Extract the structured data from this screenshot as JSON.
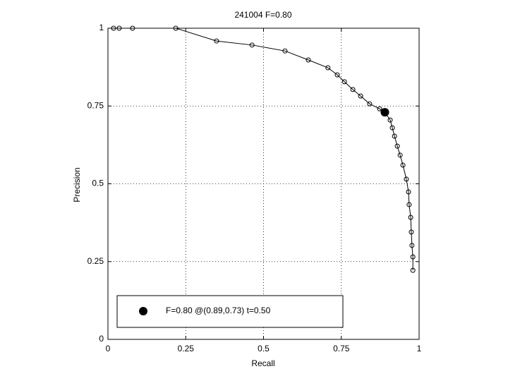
{
  "chart_data": {
    "type": "line",
    "title": "241004 F=0.80",
    "xlabel": "Recall",
    "ylabel": "Precision",
    "xlim": [
      0,
      1
    ],
    "ylim": [
      0,
      1
    ],
    "xticks": [
      0,
      0.25,
      0.5,
      0.75,
      1
    ],
    "yticks": [
      0,
      0.25,
      0.5,
      0.75,
      1
    ],
    "grid": true,
    "series": [
      {
        "color": "#000000",
        "x": [
          0.018,
          0.036,
          0.079,
          0.218,
          0.349,
          0.463,
          0.569,
          0.644,
          0.707,
          0.737,
          0.76,
          0.787,
          0.812,
          0.841,
          0.873,
          0.891,
          0.907,
          0.914,
          0.921,
          0.93,
          0.939,
          0.948,
          0.959,
          0.966,
          0.968,
          0.973,
          0.975,
          0.977,
          0.98,
          0.98
        ],
        "values": [
          1,
          1,
          1,
          1,
          0.959,
          0.946,
          0.927,
          0.898,
          0.873,
          0.85,
          0.828,
          0.803,
          0.782,
          0.757,
          0.741,
          0.728,
          0.705,
          0.68,
          0.653,
          0.621,
          0.592,
          0.56,
          0.515,
          0.474,
          0.433,
          0.392,
          0.345,
          0.302,
          0.265,
          0.222
        ]
      },
      {
        "name": "F=0.80 @(0.89,0.73) t=0.50",
        "color": "#000000",
        "x": [
          0.89
        ],
        "values": [
          0.73
        ]
      }
    ]
  }
}
